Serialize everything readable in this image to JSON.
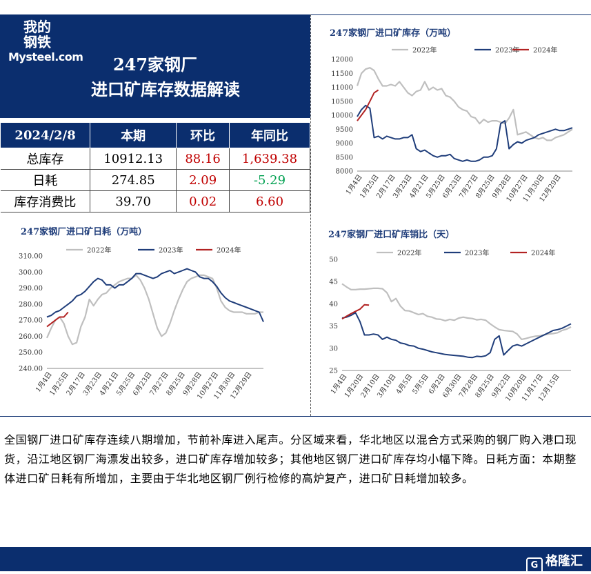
{
  "header": {
    "logo_cn_line1": "我的",
    "logo_cn_line2": "钢铁",
    "logo_en": "Mysteel.com",
    "title_line1": "247家钢厂",
    "title_line2": "进口矿库存数据解读"
  },
  "stats_table": {
    "headers": [
      "2024/2/8",
      "本期",
      "环比",
      "年同比"
    ],
    "rows": [
      {
        "label": "总库存",
        "current": "10912.13",
        "mom": "88.16",
        "yoy": "1,639.38"
      },
      {
        "label": "日耗",
        "current": "274.85",
        "mom": "2.09",
        "yoy": "-5.29"
      },
      {
        "label": "库存消费比",
        "current": "39.70",
        "mom": "0.02",
        "yoy": "6.60"
      }
    ]
  },
  "colors": {
    "header_bg": "#0b2e6e",
    "s2022": "#bfbfbf",
    "s2023": "#1f3d7a",
    "s2024": "#b22222",
    "positive": "#c00000",
    "negative": "#00a050"
  },
  "paragraph": "全国钢厂进口矿库存连续八期增加，节前补库进入尾声。分区域来看，华北地区以混合方式采购的钢厂购入港口现货，沿江地区钢厂海漂发出较多，进口矿库存增加较多；其他地区钢厂进口矿库存均小幅下降。日耗方面：本期整体进口矿日耗有所增加，主要由于华北地区钢厂例行检修的高炉复产，进口矿日耗增加较多。",
  "footer": {
    "brand": "格隆汇"
  },
  "chart_data": [
    {
      "type": "line",
      "title": "247家钢厂进口矿库存（万吨）",
      "ylim": [
        8000,
        12000
      ],
      "yticks": [
        "8000",
        "8500",
        "9000",
        "9500",
        "10000",
        "10500",
        "11000",
        "11500",
        "12000"
      ],
      "xticks": [
        "1月4日",
        "1月25日",
        "2月17日",
        "3月23日",
        "4月21日",
        "5月25日",
        "6月23日",
        "7月27日",
        "8月25日",
        "9月28日",
        "10月27日",
        "11月30日",
        "12月29日"
      ],
      "series": [
        {
          "name": "2022年",
          "x": [
            0,
            1,
            2,
            3,
            4,
            5,
            6,
            7,
            8,
            9,
            10,
            11,
            12,
            13,
            14,
            15,
            16,
            17,
            18,
            19,
            20,
            21,
            22,
            23,
            24,
            25,
            26,
            27,
            28,
            29,
            30,
            31,
            32,
            33,
            34,
            35,
            36,
            37,
            38,
            39,
            40,
            41,
            42,
            43,
            44,
            45,
            46,
            47,
            48,
            49,
            50,
            51
          ],
          "values": [
            11050,
            11500,
            11650,
            11700,
            11600,
            11300,
            11050,
            11050,
            11100,
            11050,
            11200,
            11000,
            10800,
            10700,
            10850,
            10900,
            11200,
            10900,
            11000,
            10900,
            10950,
            10700,
            10650,
            10500,
            10300,
            10200,
            10150,
            9950,
            9900,
            9700,
            9850,
            9750,
            9800,
            9800,
            9750,
            9700,
            9900,
            10200,
            9300,
            9350,
            9400,
            9300,
            9200,
            9150,
            9200,
            9100,
            9100,
            9200,
            9250,
            9300,
            9400,
            9500
          ]
        },
        {
          "name": "2023年",
          "x": [
            0,
            1,
            2,
            3,
            4,
            5,
            6,
            7,
            8,
            9,
            10,
            11,
            12,
            13,
            14,
            15,
            16,
            17,
            18,
            19,
            20,
            21,
            22,
            23,
            24,
            25,
            26,
            27,
            28,
            29,
            30,
            31,
            32,
            33,
            34,
            35,
            36,
            37,
            38,
            39,
            40,
            41,
            42,
            43,
            44,
            45,
            46,
            47,
            48,
            49,
            50,
            51
          ],
          "values": [
            9950,
            10200,
            10350,
            10250,
            9200,
            9250,
            9150,
            9250,
            9200,
            9150,
            9150,
            9200,
            9200,
            9300,
            8800,
            8700,
            8750,
            8650,
            8550,
            8500,
            8550,
            8550,
            8600,
            8450,
            8400,
            8350,
            8400,
            8350,
            8350,
            8400,
            8500,
            8500,
            8550,
            8800,
            9700,
            9800,
            8800,
            8950,
            9050,
            9000,
            9100,
            9150,
            9200,
            9300,
            9350,
            9400,
            9450,
            9500,
            9450,
            9450,
            9500,
            9550
          ]
        },
        {
          "name": "2024年",
          "x": [
            0,
            1,
            2,
            3,
            4,
            5
          ],
          "values": [
            9800,
            10000,
            10200,
            10500,
            10800,
            10900
          ]
        }
      ]
    },
    {
      "type": "line",
      "title": "247家钢厂进口矿日耗（万吨）",
      "ylim": [
        240,
        310
      ],
      "yticks": [
        "240.00",
        "250.00",
        "260.00",
        "270.00",
        "280.00",
        "290.00",
        "300.00",
        "310.00"
      ],
      "xticks": [
        "1月4日",
        "1月25日",
        "2月17日",
        "3月23日",
        "4月21日",
        "5月25日",
        "6月23日",
        "7月27日",
        "8月25日",
        "9月28日",
        "10月27日",
        "11月30日",
        "12月29日"
      ],
      "series": [
        {
          "name": "2022年",
          "x": [
            0,
            1,
            2,
            3,
            4,
            5,
            6,
            7,
            8,
            9,
            10,
            11,
            12,
            13,
            14,
            15,
            16,
            17,
            18,
            19,
            20,
            21,
            22,
            23,
            24,
            25,
            26,
            27,
            28,
            29,
            30,
            31,
            32,
            33,
            34,
            35,
            36,
            37,
            38,
            39,
            40,
            41,
            42,
            43,
            44,
            45,
            46,
            47,
            48,
            49,
            50,
            51
          ],
          "values": [
            259,
            265,
            270,
            272,
            268,
            260,
            255,
            256,
            266,
            272,
            283,
            279,
            283,
            286,
            287,
            290,
            292,
            294,
            295,
            296,
            296,
            298,
            295,
            290,
            283,
            274,
            265,
            260,
            262,
            268,
            276,
            283,
            289,
            294,
            296,
            297,
            298,
            298,
            297,
            296,
            290,
            282,
            278,
            276,
            275,
            275,
            275,
            274,
            274,
            274,
            275,
            275
          ]
        },
        {
          "name": "2023年",
          "x": [
            0,
            1,
            2,
            3,
            4,
            5,
            6,
            7,
            8,
            9,
            10,
            11,
            12,
            13,
            14,
            15,
            16,
            17,
            18,
            19,
            20,
            21,
            22,
            23,
            24,
            25,
            26,
            27,
            28,
            29,
            30,
            31,
            32,
            33,
            34,
            35,
            36,
            37,
            38,
            39,
            40,
            41,
            42,
            43,
            44,
            45,
            46,
            47,
            48,
            49,
            50,
            51
          ],
          "values": [
            272,
            273,
            275,
            276,
            278,
            280,
            282,
            285,
            286,
            288,
            291,
            294,
            296,
            295,
            292,
            292,
            290,
            292,
            292,
            294,
            296,
            299,
            299,
            298,
            297,
            296,
            297,
            299,
            300,
            301,
            299,
            300,
            301,
            302,
            301,
            300,
            297,
            296,
            296,
            294,
            291,
            287,
            284,
            282,
            281,
            280,
            279,
            278,
            277,
            276,
            275,
            269
          ]
        },
        {
          "name": "2024年",
          "x": [
            0,
            1,
            2,
            3,
            4,
            5
          ],
          "values": [
            266,
            268,
            270,
            272,
            272,
            275
          ]
        }
      ]
    },
    {
      "type": "line",
      "title": "247家钢厂进口矿库销比（天）",
      "ylim": [
        25,
        50
      ],
      "yticks": [
        "25",
        "30",
        "35",
        "40",
        "45",
        "50"
      ],
      "xticks": [
        "1月4日",
        "1月20日",
        "2月10日",
        "3月10日",
        "4月5日",
        "5月5日",
        "6月2日",
        "6月30日",
        "7月28日",
        "8月25日",
        "9月22日",
        "10月20日",
        "11月17日",
        "12月15日"
      ],
      "series": [
        {
          "name": "2022年",
          "x": [
            0,
            1,
            2,
            3,
            4,
            5,
            6,
            7,
            8,
            9,
            10,
            11,
            12,
            13,
            14,
            15,
            16,
            17,
            18,
            19,
            20,
            21,
            22,
            23,
            24,
            25,
            26,
            27,
            28,
            29,
            30,
            31,
            32,
            33,
            34,
            35,
            36,
            37,
            38,
            39,
            40,
            41,
            42,
            43,
            44,
            45,
            46,
            47,
            48,
            49,
            50,
            51
          ],
          "values": [
            44.5,
            43.8,
            43.2,
            43.2,
            43.3,
            43.3,
            43.4,
            43.5,
            43.5,
            43.4,
            42.5,
            40.5,
            41.2,
            39.5,
            38.5,
            38.4,
            38.0,
            37.6,
            37.8,
            37.2,
            37.0,
            36.6,
            36.5,
            36.2,
            36.5,
            36.3,
            36.8,
            37.0,
            36.8,
            36.7,
            36.4,
            36.5,
            36.3,
            35.5,
            34.8,
            34.2,
            34.0,
            33.9,
            33.8,
            33.2,
            32.0,
            32.2,
            32.5,
            32.7,
            32.8,
            33.0,
            33.2,
            33.3,
            33.5,
            34.0,
            34.3,
            34.8
          ]
        },
        {
          "name": "2023年",
          "x": [
            0,
            1,
            2,
            3,
            4,
            5,
            6,
            7,
            8,
            9,
            10,
            11,
            12,
            13,
            14,
            15,
            16,
            17,
            18,
            19,
            20,
            21,
            22,
            23,
            24,
            25,
            26,
            27,
            28,
            29,
            30,
            31,
            32,
            33,
            34,
            35,
            36,
            37,
            38,
            39,
            40,
            41,
            42,
            43,
            44,
            45,
            46,
            47,
            48,
            49,
            50,
            51
          ],
          "values": [
            36.8,
            37.0,
            37.4,
            38.0,
            36.0,
            33.0,
            33.0,
            33.2,
            33.0,
            32.0,
            32.5,
            32.0,
            31.8,
            31.2,
            31.0,
            30.6,
            30.5,
            30.0,
            29.8,
            29.5,
            29.2,
            29.0,
            28.8,
            28.6,
            28.5,
            28.4,
            28.3,
            28.2,
            28.0,
            27.9,
            28.2,
            28.1,
            28.3,
            29.0,
            32.0,
            32.8,
            28.5,
            29.5,
            30.5,
            30.8,
            30.5,
            31.0,
            31.5,
            32.0,
            32.5,
            33.0,
            33.5,
            34.0,
            34.2,
            34.5,
            35.0,
            35.5
          ]
        },
        {
          "name": "2024年",
          "x": [
            0,
            1,
            2,
            3,
            4,
            5,
            6
          ],
          "values": [
            36.6,
            37.2,
            37.8,
            38.3,
            38.8,
            39.8,
            39.7
          ]
        }
      ]
    }
  ]
}
